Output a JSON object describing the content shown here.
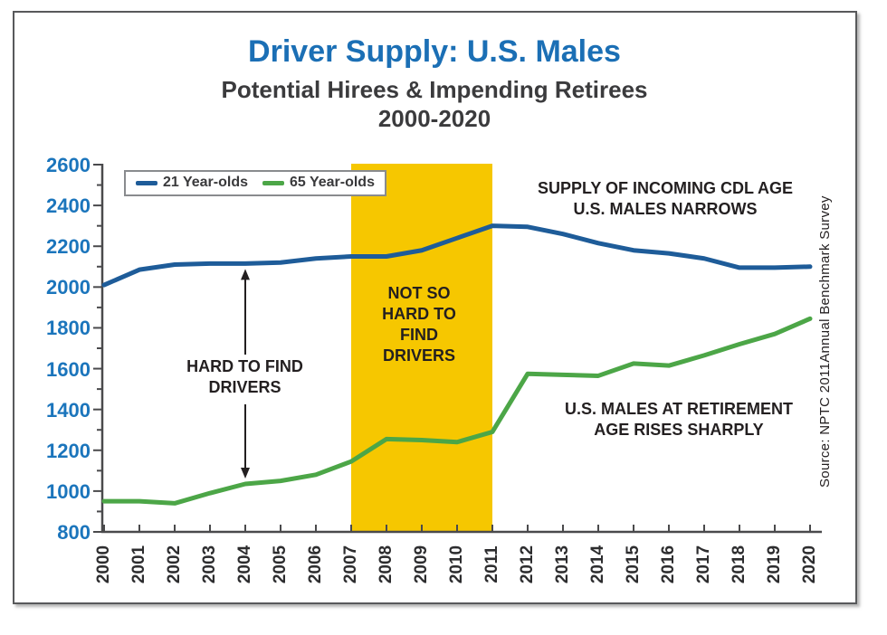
{
  "header": {
    "title": "Driver Supply: U.S. Males",
    "subtitle1": "Potential Hirees & Impending Retirees",
    "subtitle2": "2000-2020"
  },
  "legend": {
    "items": [
      {
        "label": "21 Year-olds",
        "color": "#1e5c99"
      },
      {
        "label": "65 Year-olds",
        "color": "#4ca647"
      }
    ]
  },
  "annotations": {
    "hard_to_find": "HARD TO FIND\nDRIVERS",
    "not_so_hard": "NOT SO\nHARD TO\nFIND\nDRIVERS",
    "supply_narrows": "SUPPLY OF INCOMING CDL AGE\nU.S. MALES NARROWS",
    "retirement_rises": "U.S. MALES AT RETIREMENT\nAGE RISES SHARPLY",
    "source": "Source: NPTC 2011Annual Benchmark Survey"
  },
  "chart_data": {
    "type": "line",
    "title": "Driver Supply: U.S. Males",
    "subtitle": "Potential Hirees & Impending Retirees 2000-2020",
    "x": [
      2000,
      2001,
      2002,
      2003,
      2004,
      2005,
      2006,
      2007,
      2008,
      2009,
      2010,
      2011,
      2012,
      2013,
      2014,
      2015,
      2016,
      2017,
      2018,
      2019,
      2020
    ],
    "series": [
      {
        "name": "21 Year-olds",
        "color": "#1e5c99",
        "values": [
          2010,
          2085,
          2110,
          2115,
          2115,
          2120,
          2140,
          2150,
          2150,
          2180,
          2240,
          2300,
          2295,
          2260,
          2215,
          2180,
          2165,
          2140,
          2095,
          2095,
          2100
        ]
      },
      {
        "name": "65 Year-olds",
        "color": "#4ca647",
        "values": [
          950,
          950,
          940,
          990,
          1035,
          1050,
          1080,
          1145,
          1255,
          1250,
          1240,
          1290,
          1575,
          1570,
          1565,
          1625,
          1615,
          1665,
          1720,
          1770,
          1845
        ]
      }
    ],
    "y_axis": {
      "min": 800,
      "max": 2600,
      "major_tick_step": 200,
      "minor_tick_step": 100,
      "tick_labels": [
        2600,
        2400,
        2200,
        2000,
        1800,
        1600,
        1400,
        1200,
        1000,
        800
      ],
      "label_color": "#1b75bc"
    },
    "x_axis": {
      "labels_rotated_degrees": -90,
      "label_color": "#2d2d2f"
    },
    "highlight_band": {
      "x_from": 2007,
      "x_to": 2011,
      "color": "#f6c700",
      "label": "NOT SO HARD TO FIND DRIVERS"
    },
    "grid": false,
    "legend_position": "top-left",
    "annotation_arrow": {
      "x": 2004,
      "from_series": "21 Year-olds",
      "to_series": "65 Year-olds",
      "label": "HARD TO FIND DRIVERS"
    }
  },
  "colors": {
    "title_blue": "#1b6fb5",
    "axis": "#4a4a4c",
    "annotation_text": "#231f20",
    "frame_border": "#58595b"
  }
}
